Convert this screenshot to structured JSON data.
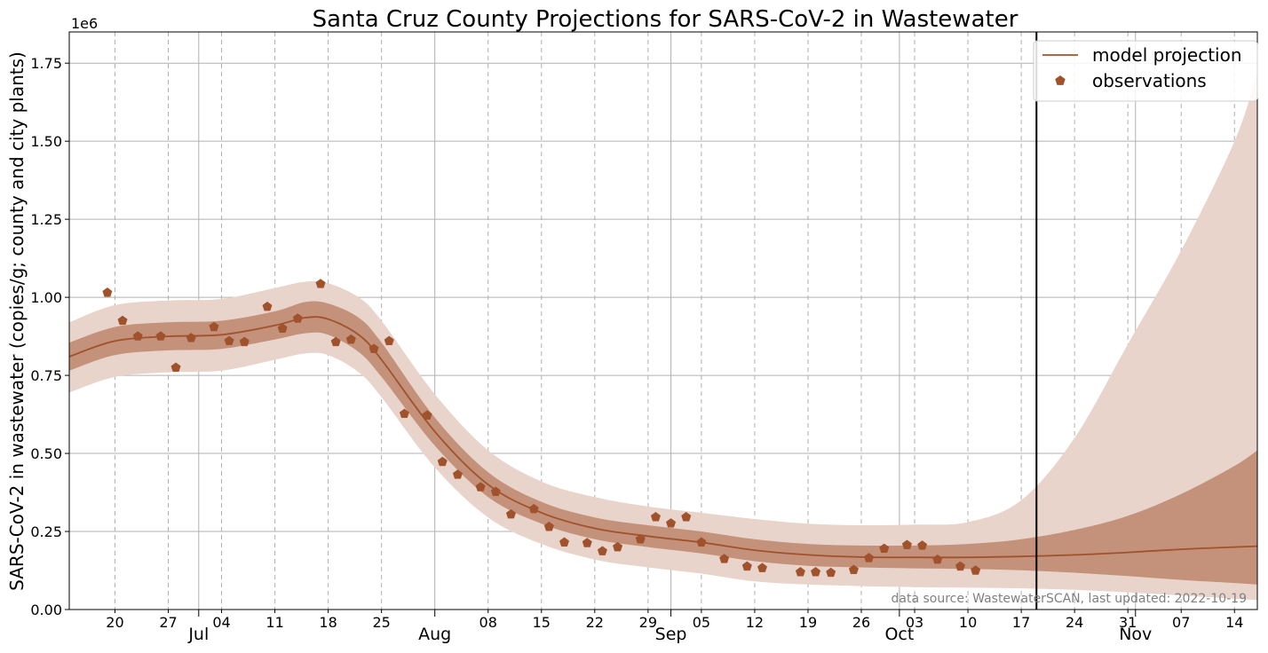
{
  "chart_data": {
    "type": "line",
    "title": "Santa Cruz County Projections for SARS-CoV-2 in Wastewater",
    "ylabel": "SARS-CoV-2 in wastewater (copies/g; county and city plants)",
    "xlabel": "",
    "y_offset_label": "1e6",
    "xlim": [
      "2022-06-14",
      "2022-11-17"
    ],
    "ylim": [
      0,
      1850000
    ],
    "y_ticks": [
      0,
      250000,
      500000,
      750000,
      1000000,
      1250000,
      1500000,
      1750000
    ],
    "y_tick_labels": [
      "0.00",
      "0.25",
      "0.50",
      "0.75",
      "1.00",
      "1.25",
      "1.50",
      "1.75"
    ],
    "x_minor_ticks": [
      {
        "date": "2022-06-20",
        "label": "20"
      },
      {
        "date": "2022-06-27",
        "label": "27"
      },
      {
        "date": "2022-07-04",
        "label": "04"
      },
      {
        "date": "2022-07-11",
        "label": "11"
      },
      {
        "date": "2022-07-18",
        "label": "18"
      },
      {
        "date": "2022-07-25",
        "label": "25"
      },
      {
        "date": "2022-08-08",
        "label": "08"
      },
      {
        "date": "2022-08-15",
        "label": "15"
      },
      {
        "date": "2022-08-22",
        "label": "22"
      },
      {
        "date": "2022-08-29",
        "label": "29"
      },
      {
        "date": "2022-09-05",
        "label": "05"
      },
      {
        "date": "2022-09-12",
        "label": "12"
      },
      {
        "date": "2022-09-19",
        "label": "19"
      },
      {
        "date": "2022-09-26",
        "label": "26"
      },
      {
        "date": "2022-10-03",
        "label": "03"
      },
      {
        "date": "2022-10-10",
        "label": "10"
      },
      {
        "date": "2022-10-17",
        "label": "17"
      },
      {
        "date": "2022-10-24",
        "label": "24"
      },
      {
        "date": "2022-10-31",
        "label": "31"
      },
      {
        "date": "2022-11-07",
        "label": "07"
      },
      {
        "date": "2022-11-14",
        "label": "14"
      }
    ],
    "x_month_ticks": [
      {
        "date": "2022-07-01",
        "label": "Jul"
      },
      {
        "date": "2022-08-01",
        "label": "Aug"
      },
      {
        "date": "2022-09-01",
        "label": "Sep"
      },
      {
        "date": "2022-10-01",
        "label": "Oct"
      },
      {
        "date": "2022-11-01",
        "label": "Nov"
      }
    ],
    "last_updated_date": "2022-10-19",
    "grid": true,
    "legend_position": "top-right",
    "legend": [
      {
        "label": "model projection",
        "marker": "line"
      },
      {
        "label": "observations",
        "marker": "pentagon"
      }
    ],
    "colors": {
      "line": "#a0522d",
      "marker": "#a0522d",
      "band_inner": "#c4917a",
      "band_outer": "#e8d4ca",
      "grid": "#b0b0b0",
      "vline": "#000000"
    },
    "annotation": "data source: WastewaterSCAN, last updated: 2022-10-19",
    "series": [
      {
        "name": "model projection",
        "type": "line",
        "x": [
          "2022-06-14",
          "2022-06-20",
          "2022-06-27",
          "2022-07-04",
          "2022-07-11",
          "2022-07-15",
          "2022-07-18",
          "2022-07-22",
          "2022-07-25",
          "2022-08-01",
          "2022-08-08",
          "2022-08-15",
          "2022-08-22",
          "2022-08-29",
          "2022-09-05",
          "2022-09-12",
          "2022-09-19",
          "2022-09-26",
          "2022-10-03",
          "2022-10-10",
          "2022-10-17",
          "2022-10-24",
          "2022-10-31",
          "2022-11-07",
          "2022-11-14",
          "2022-11-17"
        ],
        "y": [
          810000,
          860000,
          875000,
          880000,
          910000,
          935000,
          930000,
          880000,
          800000,
          570000,
          400000,
          310000,
          260000,
          235000,
          215000,
          190000,
          175000,
          168000,
          167000,
          167000,
          170000,
          175000,
          183000,
          193000,
          200000,
          203000
        ]
      },
      {
        "name": "inner interval",
        "type": "area",
        "x": [
          "2022-06-14",
          "2022-06-20",
          "2022-06-27",
          "2022-07-04",
          "2022-07-11",
          "2022-07-15",
          "2022-07-18",
          "2022-07-22",
          "2022-07-25",
          "2022-08-01",
          "2022-08-08",
          "2022-08-15",
          "2022-08-22",
          "2022-08-29",
          "2022-09-05",
          "2022-09-12",
          "2022-09-19",
          "2022-09-26",
          "2022-10-03",
          "2022-10-10",
          "2022-10-17",
          "2022-10-24",
          "2022-10-31",
          "2022-11-07",
          "2022-11-14",
          "2022-11-17"
        ],
        "lower": [
          765000,
          815000,
          830000,
          835000,
          865000,
          885000,
          880000,
          825000,
          745000,
          525000,
          360000,
          275000,
          225000,
          200000,
          180000,
          155000,
          140000,
          135000,
          132000,
          130000,
          126000,
          118000,
          107000,
          95000,
          85000,
          80000
        ],
        "upper": [
          855000,
          905000,
          920000,
          925000,
          955000,
          985000,
          980000,
          935000,
          855000,
          615000,
          440000,
          345000,
          295000,
          270000,
          250000,
          225000,
          210000,
          205000,
          205000,
          210000,
          225000,
          255000,
          300000,
          370000,
          460000,
          510000
        ]
      },
      {
        "name": "outer interval",
        "type": "area",
        "x": [
          "2022-06-14",
          "2022-06-20",
          "2022-06-27",
          "2022-07-04",
          "2022-07-11",
          "2022-07-15",
          "2022-07-18",
          "2022-07-22",
          "2022-07-25",
          "2022-08-01",
          "2022-08-08",
          "2022-08-15",
          "2022-08-22",
          "2022-08-29",
          "2022-09-05",
          "2022-09-12",
          "2022-09-19",
          "2022-09-26",
          "2022-10-03",
          "2022-10-10",
          "2022-10-17",
          "2022-10-24",
          "2022-10-31",
          "2022-11-07",
          "2022-11-14",
          "2022-11-17"
        ],
        "lower": [
          695000,
          745000,
          760000,
          765000,
          800000,
          820000,
          815000,
          760000,
          680000,
          455000,
          295000,
          210000,
          160000,
          135000,
          115000,
          90000,
          80000,
          75000,
          72000,
          70000,
          68000,
          63000,
          55000,
          45000,
          35000,
          30000
        ],
        "upper": [
          920000,
          975000,
          990000,
          995000,
          1030000,
          1050000,
          1045000,
          1000000,
          925000,
          690000,
          510000,
          410000,
          360000,
          330000,
          310000,
          290000,
          275000,
          270000,
          272000,
          280000,
          350000,
          550000,
          850000,
          1150000,
          1500000,
          1720000
        ]
      },
      {
        "name": "observations",
        "type": "scatter",
        "x": [
          "2022-06-19",
          "2022-06-21",
          "2022-06-23",
          "2022-06-26",
          "2022-06-28",
          "2022-06-30",
          "2022-07-03",
          "2022-07-05",
          "2022-07-07",
          "2022-07-10",
          "2022-07-12",
          "2022-07-14",
          "2022-07-17",
          "2022-07-19",
          "2022-07-21",
          "2022-07-24",
          "2022-07-26",
          "2022-07-28",
          "2022-07-31",
          "2022-08-02",
          "2022-08-04",
          "2022-08-07",
          "2022-08-09",
          "2022-08-11",
          "2022-08-14",
          "2022-08-16",
          "2022-08-18",
          "2022-08-21",
          "2022-08-23",
          "2022-08-25",
          "2022-08-28",
          "2022-08-30",
          "2022-09-01",
          "2022-09-03",
          "2022-09-05",
          "2022-09-08",
          "2022-09-11",
          "2022-09-13",
          "2022-09-18",
          "2022-09-20",
          "2022-09-22",
          "2022-09-25",
          "2022-09-27",
          "2022-09-29",
          "2022-10-02",
          "2022-10-04",
          "2022-10-06",
          "2022-10-09",
          "2022-10-11"
        ],
        "y": [
          1015000,
          925000,
          875000,
          875000,
          775000,
          870000,
          905000,
          860000,
          857000,
          970000,
          900000,
          932000,
          1043000,
          857000,
          865000,
          835000,
          860000,
          627000,
          622000,
          473000,
          432000,
          392000,
          377000,
          305000,
          322000,
          265000,
          215000,
          213000,
          187000,
          200000,
          225000,
          296000,
          276000,
          296000,
          215000,
          162000,
          138000,
          133000,
          120000,
          120000,
          118000,
          127000,
          165000,
          195000,
          207000,
          205000,
          160000,
          138000,
          125000
        ]
      }
    ]
  }
}
